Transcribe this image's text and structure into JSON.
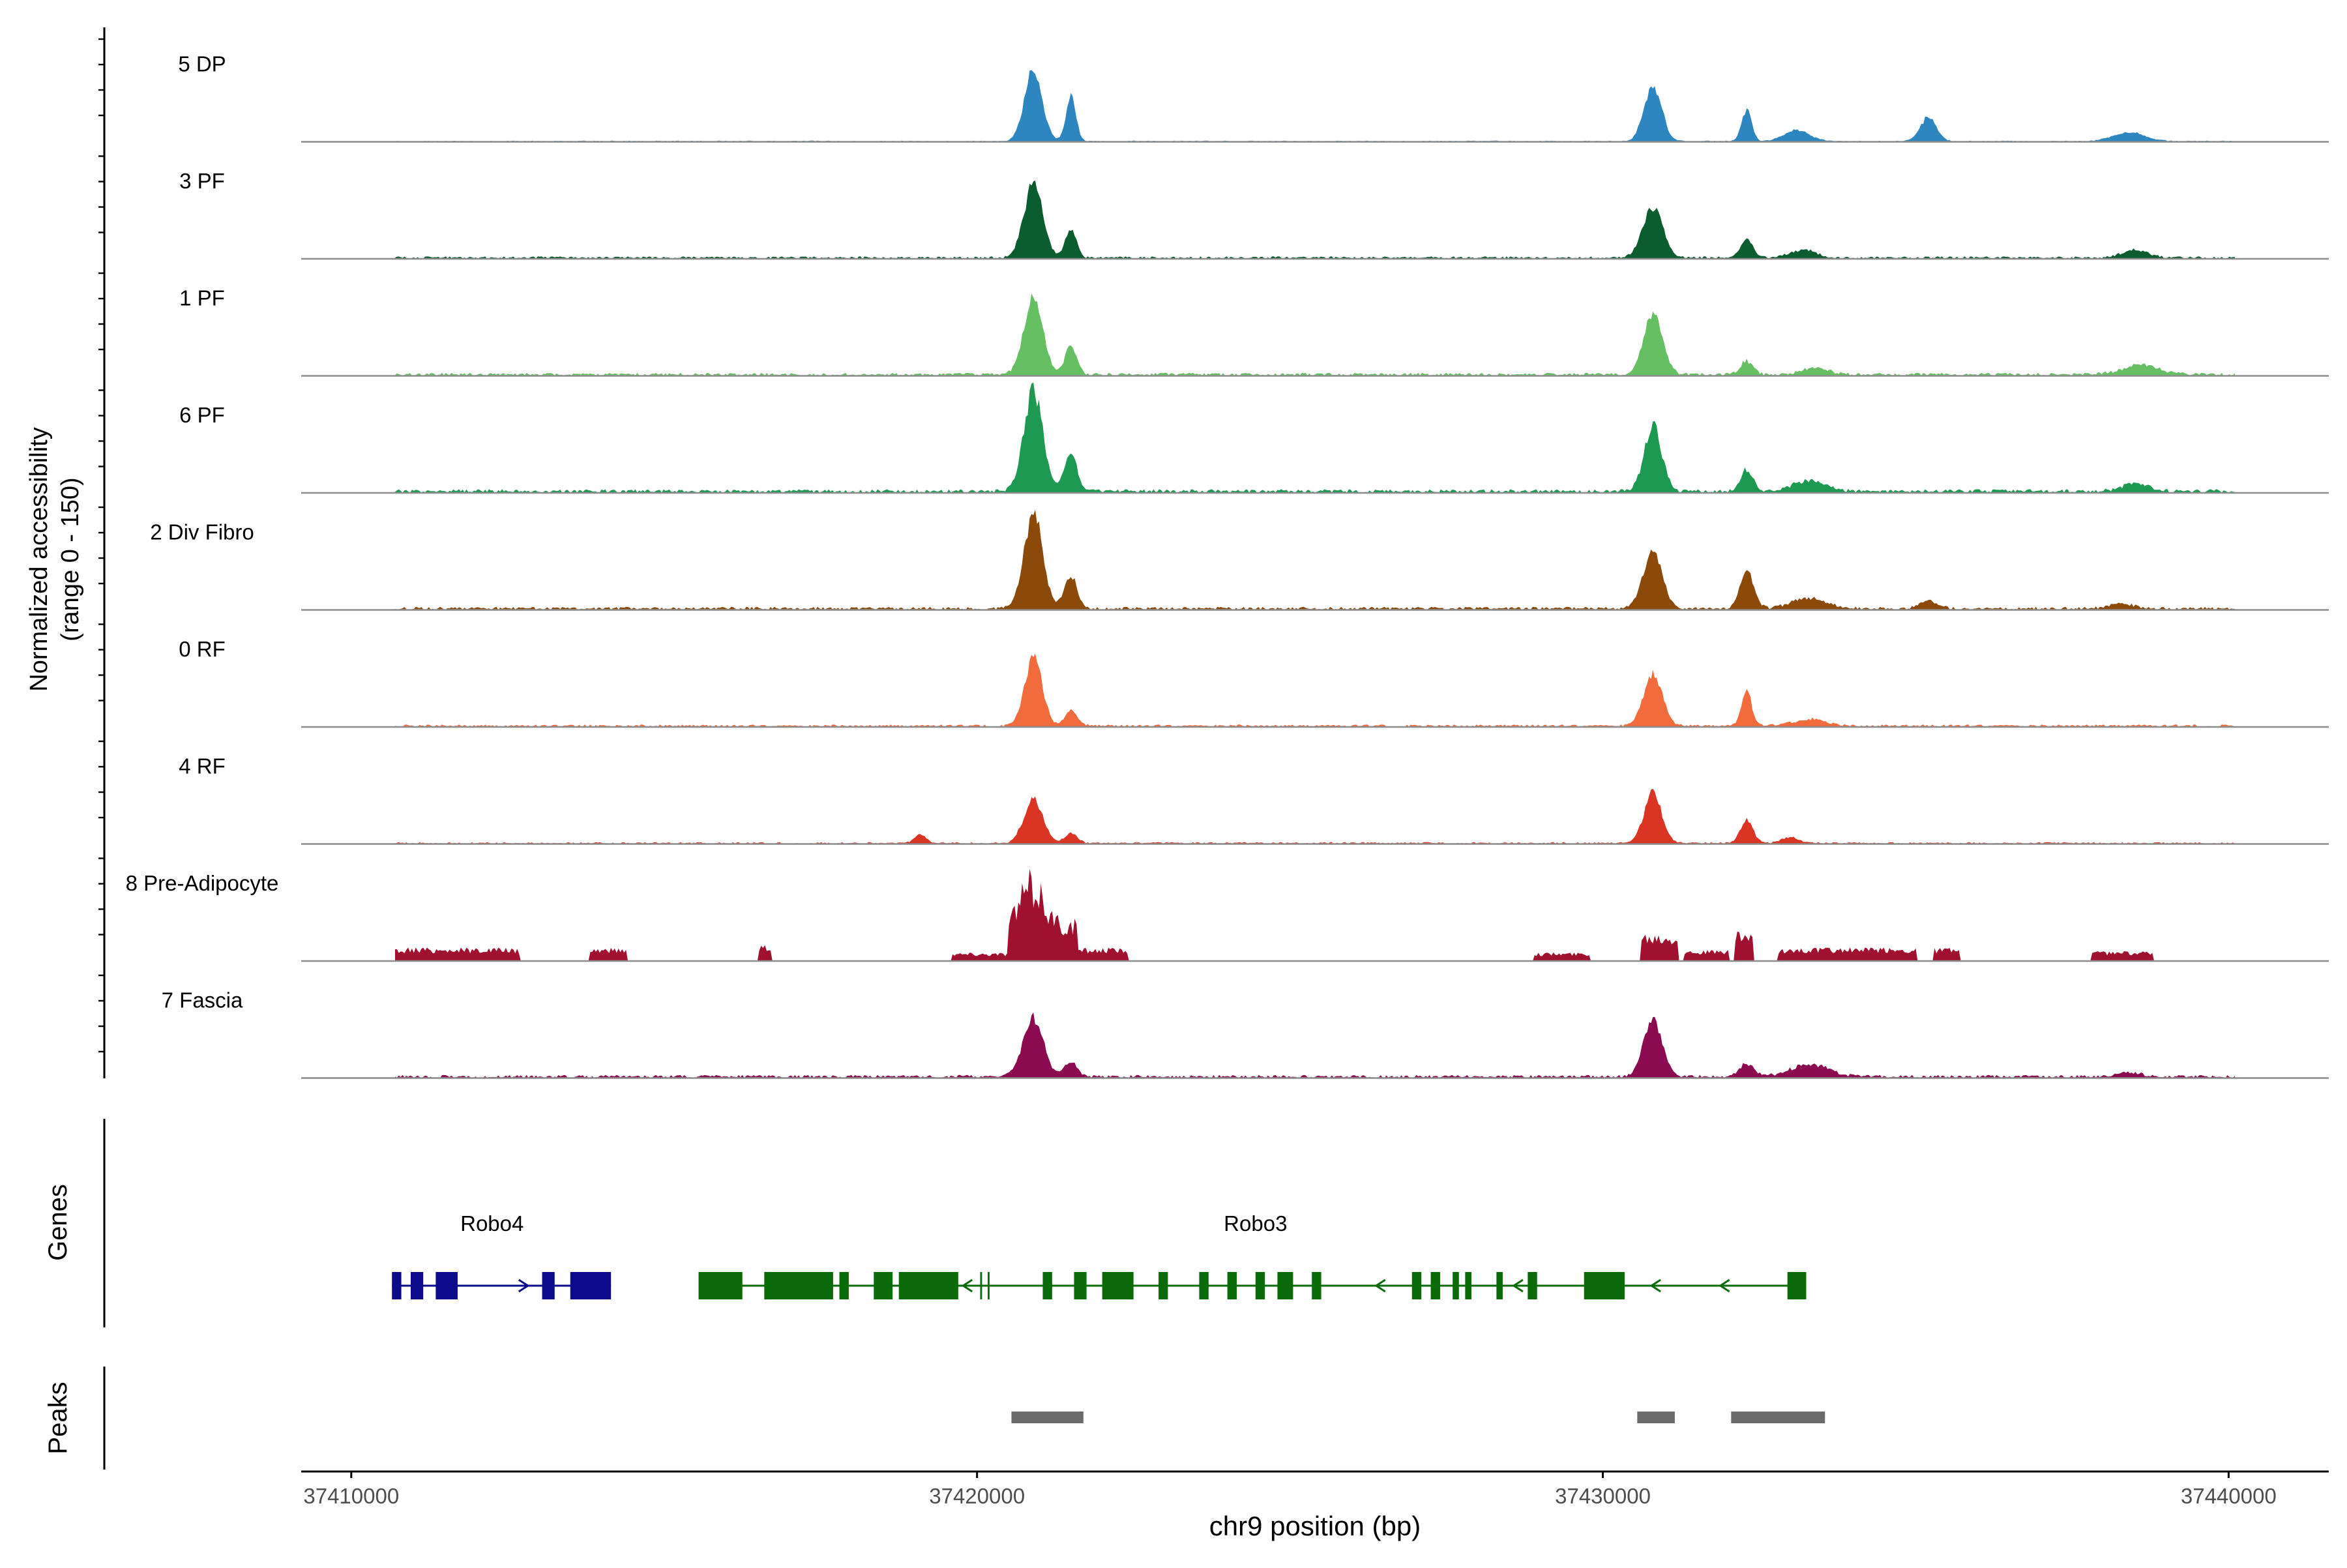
{
  "chart_data": {
    "type": "area",
    "title": "",
    "ylabel_line1": "Normalized accessibility",
    "ylabel_line2": "(range 0 - 150)",
    "xlabel": "chr9 position (bp)",
    "xlim": [
      37409200,
      37441600
    ],
    "ylim": [
      0,
      150
    ],
    "xticks": [
      37410000,
      37420000,
      37430000,
      37440000
    ],
    "xtick_labels": [
      "37410000",
      "37420000",
      "37430000",
      "37440000"
    ],
    "tracks": [
      {
        "name": "5 DP",
        "color": "#2e86c1",
        "noise": 2,
        "peaks": [
          [
            37420900,
            130,
            140
          ],
          [
            37421500,
            80,
            80
          ],
          [
            37430800,
            98,
            140
          ],
          [
            37432300,
            55,
            80
          ],
          [
            37433100,
            20,
            200
          ],
          [
            37435200,
            42,
            130
          ],
          [
            37438400,
            16,
            250
          ]
        ]
      },
      {
        "name": "3 PF",
        "color": "#0b5c2e",
        "noise": 4,
        "peaks": [
          [
            37420900,
            130,
            150
          ],
          [
            37421500,
            50,
            90
          ],
          [
            37430800,
            88,
            160
          ],
          [
            37432300,
            32,
            100
          ],
          [
            37433200,
            14,
            200
          ],
          [
            37438500,
            14,
            200
          ]
        ]
      },
      {
        "name": "1 PF",
        "color": "#66bf63",
        "noise": 5,
        "peaks": [
          [
            37420900,
            135,
            150
          ],
          [
            37421500,
            52,
            90
          ],
          [
            37430800,
            108,
            150
          ],
          [
            37432300,
            24,
            100
          ],
          [
            37433400,
            12,
            200
          ],
          [
            37438600,
            16,
            300
          ]
        ]
      },
      {
        "name": "6 PF",
        "color": "#1e9952",
        "noise": 6,
        "peaks": [
          [
            37420900,
            178,
            150
          ],
          [
            37421500,
            68,
            100
          ],
          [
            37430800,
            115,
            140
          ],
          [
            37432300,
            38,
            100
          ],
          [
            37433300,
            20,
            250
          ],
          [
            37438500,
            14,
            200
          ]
        ]
      },
      {
        "name": "2 Div Fibro",
        "color": "#8b4a0a",
        "noise": 5,
        "peaks": [
          [
            37420900,
            168,
            150
          ],
          [
            37421500,
            58,
            100
          ],
          [
            37430800,
            105,
            150
          ],
          [
            37432300,
            65,
            110
          ],
          [
            37433300,
            18,
            280
          ],
          [
            37435200,
            14,
            150
          ],
          [
            37438300,
            8,
            200
          ]
        ]
      },
      {
        "name": "0 RF",
        "color": "#f26b3c",
        "noise": 4,
        "peaks": [
          [
            37420900,
            120,
            140
          ],
          [
            37421500,
            28,
            100
          ],
          [
            37430800,
            90,
            150
          ],
          [
            37432300,
            62,
            80
          ],
          [
            37433300,
            12,
            250
          ]
        ]
      },
      {
        "name": "4 RF",
        "color": "#d93424",
        "noise": 3,
        "peaks": [
          [
            37419100,
            16,
            90
          ],
          [
            37420900,
            78,
            150
          ],
          [
            37421500,
            18,
            100
          ],
          [
            37430800,
            88,
            140
          ],
          [
            37432300,
            42,
            100
          ],
          [
            37433000,
            10,
            150
          ]
        ]
      },
      {
        "name": "8 Pre-Adipocyte",
        "color": "#a0102f",
        "noise": 0,
        "blocks": [
          [
            37410700,
            37412700,
            22
          ],
          [
            37413800,
            37414400,
            22
          ],
          [
            37416500,
            37416700,
            28
          ],
          [
            37419600,
            37420500,
            14
          ],
          [
            37420500,
            37421600,
            155
          ],
          [
            37421600,
            37422400,
            22
          ],
          [
            37428900,
            37429800,
            14
          ],
          [
            37430600,
            37431200,
            48
          ],
          [
            37431300,
            37432000,
            18
          ],
          [
            37432100,
            37432400,
            48
          ],
          [
            37432800,
            37435000,
            22
          ],
          [
            37435300,
            37435700,
            22
          ],
          [
            37437800,
            37438800,
            16
          ]
        ]
      },
      {
        "name": "7 Fascia",
        "color": "#8b0a50",
        "noise": 5,
        "peaks": [
          [
            37420900,
            105,
            160
          ],
          [
            37421500,
            28,
            100
          ],
          [
            37430800,
            100,
            150
          ],
          [
            37432300,
            22,
            120
          ],
          [
            37433300,
            22,
            300
          ],
          [
            37438400,
            8,
            200
          ]
        ]
      }
    ],
    "genes_label": "Genes",
    "peaks_label": "Peaks",
    "genes": [
      {
        "name": "Robo4",
        "color": "#0b0b8c",
        "strand": "+",
        "start": 37410650,
        "end": 37414150,
        "exons": [
          [
            37410650,
            37410800
          ],
          [
            37410950,
            37411150
          ],
          [
            37411350,
            37411700
          ],
          [
            37413050,
            37413250
          ],
          [
            37413500,
            37414150
          ]
        ]
      },
      {
        "name": "Robo3",
        "color": "#0b6b0b",
        "strand": "-",
        "start": 37415550,
        "end": 37433250,
        "exons": [
          [
            37415550,
            37416250
          ],
          [
            37416600,
            37417700
          ],
          [
            37417800,
            37417950
          ],
          [
            37418350,
            37418650
          ],
          [
            37418750,
            37419700
          ],
          [
            37420050,
            37420080
          ],
          [
            37420170,
            37420200
          ],
          [
            37421050,
            37421200
          ],
          [
            37421550,
            37421750
          ],
          [
            37422000,
            37422500
          ],
          [
            37422900,
            37423050
          ],
          [
            37423550,
            37423700
          ],
          [
            37424000,
            37424150
          ],
          [
            37424450,
            37424600
          ],
          [
            37424800,
            37425050
          ],
          [
            37425350,
            37425500
          ],
          [
            37426950,
            37427100
          ],
          [
            37427250,
            37427400
          ],
          [
            37427600,
            37427700
          ],
          [
            37427800,
            37427900
          ],
          [
            37428300,
            37428400
          ],
          [
            37428800,
            37428950
          ],
          [
            37429700,
            37430350
          ],
          [
            37432950,
            37433250
          ]
        ]
      }
    ],
    "peak_regions": [
      [
        37420550,
        37421700
      ],
      [
        37430550,
        37431150
      ],
      [
        37432050,
        37433550
      ]
    ]
  }
}
